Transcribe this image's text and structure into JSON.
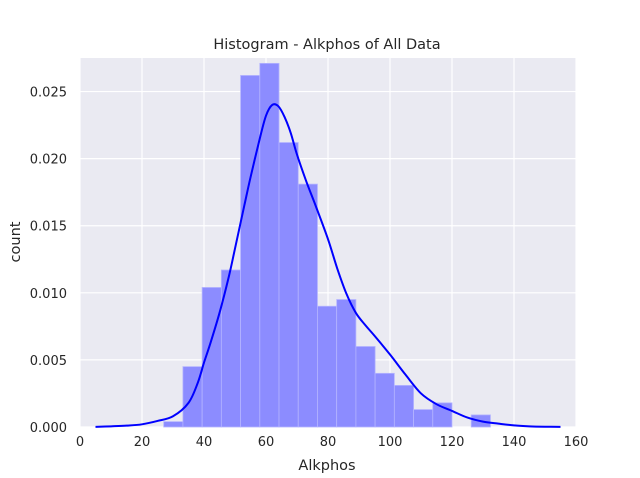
{
  "chart_data": {
    "type": "bar",
    "title": "Histogram - Alkphos of All Data",
    "xlabel": "Alkphos",
    "ylabel": "count",
    "xlim": [
      0,
      160
    ],
    "ylim": [
      0,
      0.0275
    ],
    "x_ticks": [
      "0",
      "20",
      "40",
      "60",
      "80",
      "100",
      "120",
      "140",
      "160"
    ],
    "y_ticks": [
      "0.000",
      "0.005",
      "0.010",
      "0.015",
      "0.020",
      "0.025"
    ],
    "grid": true,
    "bin_edges": [
      27,
      33.2,
      39.4,
      45.6,
      51.8,
      58,
      64.2,
      70.4,
      76.6,
      82.8,
      89,
      95.2,
      101.4,
      107.6,
      113.8,
      120,
      126.2,
      132.4,
      138.6
    ],
    "values": [
      0.0004,
      0.0045,
      0.0104,
      0.0117,
      0.0262,
      0.0271,
      0.0212,
      0.0181,
      0.009,
      0.0095,
      0.006,
      0.004,
      0.0031,
      0.0013,
      0.0018,
      0.0,
      0.0009,
      0.0
    ],
    "kde": {
      "name": "kde",
      "x": [
        5,
        10,
        15,
        20,
        25,
        30,
        35,
        38,
        40,
        42,
        45,
        48,
        50,
        53,
        55,
        58,
        60,
        62,
        64,
        66,
        68,
        70,
        73,
        76,
        80,
        83,
        86,
        89,
        92,
        95,
        100,
        105,
        110,
        115,
        120,
        125,
        130,
        135,
        140,
        145,
        150,
        155
      ],
      "y": [
        1e-05,
        5e-05,
        0.0001,
        0.0002,
        0.00045,
        0.0008,
        0.0018,
        0.0033,
        0.0048,
        0.0062,
        0.0085,
        0.0112,
        0.0133,
        0.0165,
        0.0186,
        0.0215,
        0.0232,
        0.024,
        0.0239,
        0.0231,
        0.0219,
        0.0203,
        0.0183,
        0.0165,
        0.014,
        0.0118,
        0.0099,
        0.0085,
        0.0076,
        0.0068,
        0.0054,
        0.0039,
        0.0025,
        0.0017,
        0.0012,
        0.0007,
        0.0004,
        0.00025,
        0.00012,
        5e-05,
        2e-05,
        1e-05
      ]
    },
    "colors": {
      "background": "#eaeaf2",
      "grid": "#ffffff",
      "bar_fill": "#8c8cff",
      "kde_line": "#0000ff"
    }
  }
}
